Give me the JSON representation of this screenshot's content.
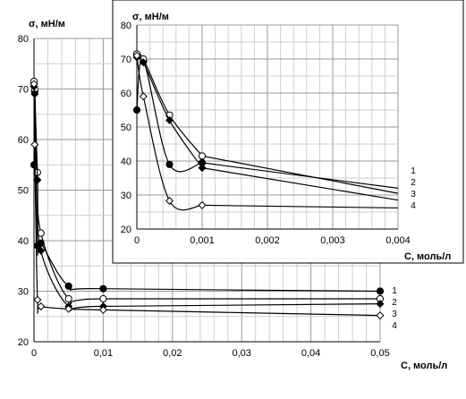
{
  "chart_data": [
    {
      "type": "line",
      "ylabel": "σ, мН/м",
      "xlabel": "С, моль/л",
      "xlim": [
        0,
        0.05
      ],
      "ylim": [
        20,
        80
      ],
      "x_ticks": [
        0,
        0.01,
        0.02,
        0.03,
        0.04,
        0.05
      ],
      "x_tick_labels": [
        "0",
        "0,01",
        "0,02",
        "0,03",
        "0,04",
        "0,05"
      ],
      "y_ticks": [
        20,
        30,
        40,
        50,
        60,
        70,
        80
      ],
      "y_tick_labels": [
        "20",
        "30",
        "40",
        "50",
        "60",
        "70",
        "80"
      ],
      "grid": true,
      "series": [
        {
          "name": "1",
          "marker": "filled-circle",
          "points": [
            [
              0,
              55
            ],
            [
              0.0001,
              69.5
            ],
            [
              0.0005,
              39
            ],
            [
              0.001,
              39.5
            ],
            [
              0.005,
              31
            ],
            [
              0.01,
              30.5
            ],
            [
              0.05,
              30
            ]
          ]
        },
        {
          "name": "2",
          "marker": "open-circle",
          "points": [
            [
              0,
              71.5
            ],
            [
              0.0001,
              70
            ],
            [
              0.0005,
              53.5
            ],
            [
              0.001,
              41.5
            ],
            [
              0.005,
              28.5
            ],
            [
              0.01,
              28.5
            ],
            [
              0.05,
              28.5
            ]
          ]
        },
        {
          "name": "3",
          "marker": "filled-diamond",
          "points": [
            [
              0,
              70.5
            ],
            [
              0.0001,
              69
            ],
            [
              0.0005,
              52
            ],
            [
              0.001,
              38
            ],
            [
              0.005,
              27
            ],
            [
              0.01,
              27
            ],
            [
              0.05,
              27.5
            ]
          ]
        },
        {
          "name": "4",
          "marker": "open-diamond",
          "points": [
            [
              0,
              71
            ],
            [
              0.0001,
              59
            ],
            [
              0.0005,
              28.3
            ],
            [
              0.001,
              27
            ],
            [
              0.005,
              26.5
            ],
            [
              0.01,
              26.3
            ],
            [
              0.05,
              25.2
            ]
          ]
        }
      ]
    },
    {
      "type": "line",
      "ylabel": "σ, мН/м",
      "xlabel": "С, моль/л",
      "xlim": [
        0,
        0.004
      ],
      "ylim": [
        20,
        80
      ],
      "x_ticks": [
        0,
        0.001,
        0.002,
        0.003,
        0.004
      ],
      "x_tick_labels": [
        "0",
        "0,001",
        "0,002",
        "0,003",
        "0,004"
      ],
      "y_ticks": [
        20,
        30,
        40,
        50,
        60,
        70,
        80
      ],
      "y_tick_labels": [
        "20",
        "30",
        "40",
        "50",
        "60",
        "70",
        "80"
      ],
      "grid": true,
      "series": [
        {
          "name": "1",
          "marker": "filled-circle",
          "points": [
            [
              0,
              55
            ],
            [
              0.0001,
              69.5
            ],
            [
              0.0005,
              39
            ],
            [
              0.001,
              39.5
            ]
          ],
          "trend": [
            [
              0.001,
              39.5
            ],
            [
              0.004,
              32
            ]
          ]
        },
        {
          "name": "2",
          "marker": "open-circle",
          "points": [
            [
              0,
              71.5
            ],
            [
              0.0001,
              70
            ],
            [
              0.0005,
              53.5
            ],
            [
              0.001,
              41.5
            ]
          ],
          "trend": [
            [
              0.001,
              41.5
            ],
            [
              0.004,
              30.5
            ]
          ]
        },
        {
          "name": "3",
          "marker": "filled-diamond",
          "points": [
            [
              0,
              70.5
            ],
            [
              0.0001,
              69
            ],
            [
              0.0005,
              52
            ],
            [
              0.001,
              38
            ]
          ],
          "trend": [
            [
              0.001,
              38
            ],
            [
              0.004,
              28.5
            ]
          ]
        },
        {
          "name": "4",
          "marker": "open-diamond",
          "points": [
            [
              0,
              71
            ],
            [
              0.0001,
              59
            ],
            [
              0.0005,
              28.3
            ],
            [
              0.001,
              27
            ]
          ],
          "trend": [
            [
              0.001,
              27
            ],
            [
              0.004,
              26.2
            ]
          ]
        }
      ]
    }
  ]
}
